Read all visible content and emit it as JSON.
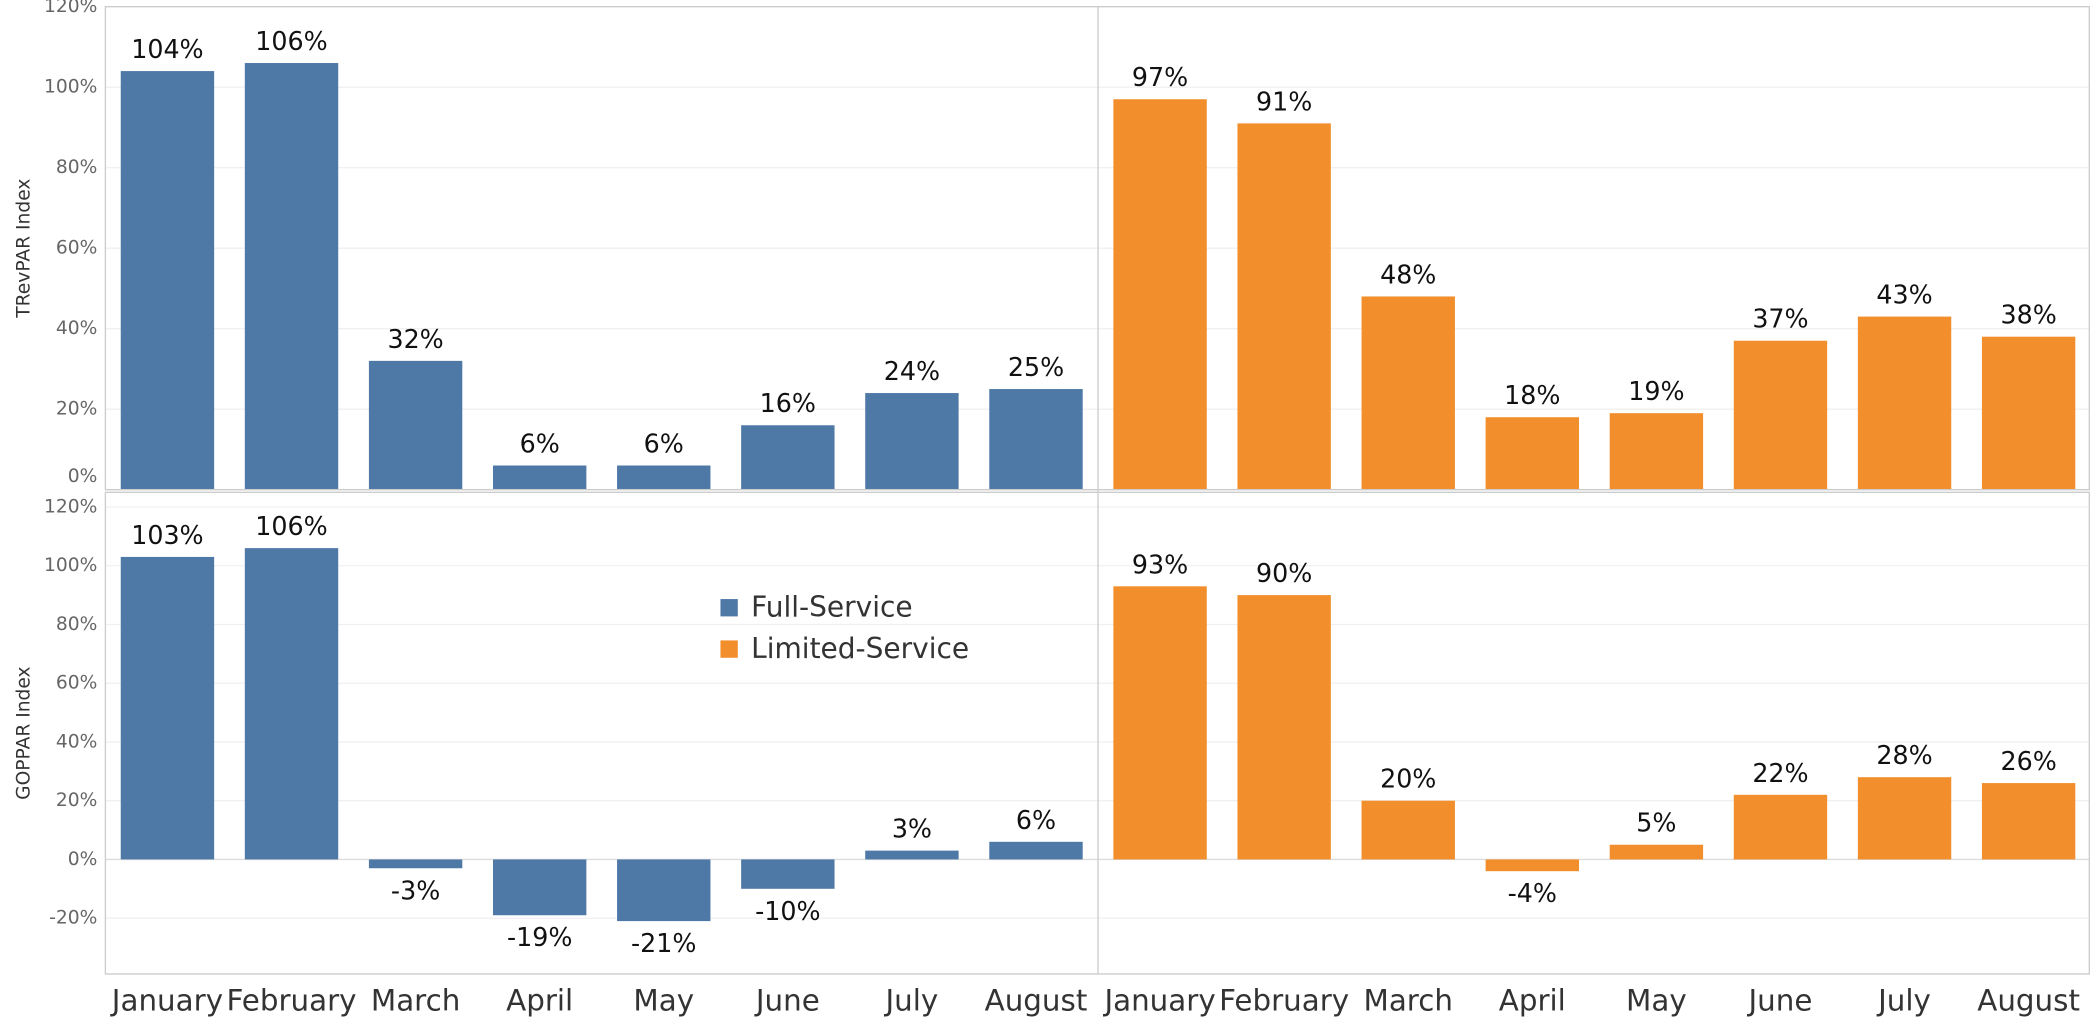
{
  "chart_data": {
    "type": "bar",
    "categories": [
      "January",
      "February",
      "March",
      "April",
      "May",
      "June",
      "July",
      "August"
    ],
    "legend_position": "center",
    "grid": true,
    "series": [
      {
        "name": "Full-Service",
        "color": "#4e79a7",
        "values": [
          [
            104,
            106,
            32,
            6,
            6,
            16,
            24,
            25
          ],
          [
            103,
            106,
            -3,
            -19,
            -21,
            -10,
            3,
            6
          ]
        ],
        "value_labels": [
          [
            "104%",
            "106%",
            "32%",
            "6%",
            "6%",
            "16%",
            "24%",
            "25%"
          ],
          [
            "103%",
            "106%",
            "-3%",
            "-19%",
            "-21%",
            "-10%",
            "3%",
            "6%"
          ]
        ]
      },
      {
        "name": "Limited-Service",
        "color": "#f28e2b",
        "values": [
          [
            97,
            91,
            48,
            18,
            19,
            37,
            43,
            38
          ],
          [
            93,
            90,
            20,
            -4,
            5,
            22,
            28,
            26
          ]
        ],
        "value_labels": [
          [
            "97%",
            "91%",
            "48%",
            "18%",
            "19%",
            "37%",
            "43%",
            "38%"
          ],
          [
            "93%",
            "90%",
            "20%",
            "-4%",
            "5%",
            "22%",
            "28%",
            "26%"
          ]
        ]
      }
    ],
    "rows": [
      {
        "ylabel": "TRevPAR Index",
        "ylim": [
          0,
          120
        ],
        "yticks": [
          {
            "value": 0,
            "label": "0%"
          },
          {
            "value": 20,
            "label": "20%"
          },
          {
            "value": 40,
            "label": "40%"
          },
          {
            "value": 60,
            "label": "60%"
          },
          {
            "value": 80,
            "label": "80%"
          },
          {
            "value": 100,
            "label": "100%"
          },
          {
            "value": 120,
            "label": "120%"
          }
        ]
      },
      {
        "ylabel": "GOPPAR Index",
        "ylim": [
          -39,
          125
        ],
        "yticks": [
          {
            "value": -20,
            "label": "-20%"
          },
          {
            "value": 0,
            "label": "0%"
          },
          {
            "value": 20,
            "label": "20%"
          },
          {
            "value": 40,
            "label": "40%"
          },
          {
            "value": 60,
            "label": "60%"
          },
          {
            "value": 80,
            "label": "80%"
          },
          {
            "value": 100,
            "label": "100%"
          },
          {
            "value": 120,
            "label": "120%"
          }
        ]
      }
    ]
  }
}
